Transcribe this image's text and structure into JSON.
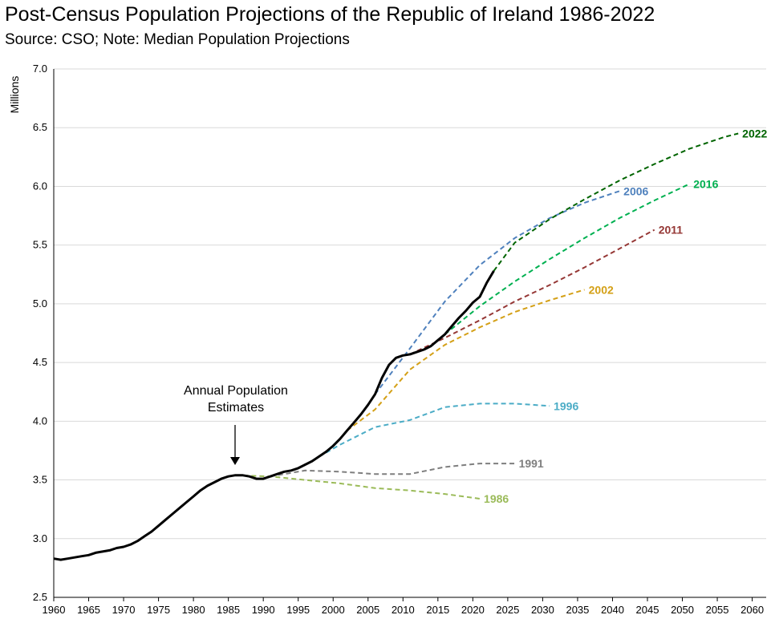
{
  "chart_data": {
    "type": "line",
    "title": "Post-Census Population Projections of the Republic of Ireland 1986-2022",
    "subtitle": "Source: CSO; Note: Median Population Projections",
    "xlabel": "",
    "ylabel": "Millions",
    "xlim": [
      1960,
      2062
    ],
    "ylim": [
      2.5,
      7.0
    ],
    "grid": true,
    "xticks": [
      "1960",
      "1965",
      "1970",
      "1975",
      "1980",
      "1985",
      "1990",
      "1995",
      "2000",
      "2005",
      "2010",
      "2015",
      "2020",
      "2025",
      "2030",
      "2035",
      "2040",
      "2045",
      "2050",
      "2055",
      "2060"
    ],
    "yticks": [
      "2.5",
      "3.0",
      "3.5",
      "4.0",
      "4.5",
      "5.0",
      "5.5",
      "6.0",
      "6.5",
      "7.0"
    ],
    "annotation": {
      "line1": "Annual Population",
      "line2": "Estimates",
      "x": 1986,
      "y": 3.54
    },
    "actual": {
      "name": "Annual Population Estimates",
      "color": "#000000",
      "x": [
        1960,
        1961,
        1962,
        1963,
        1964,
        1965,
        1966,
        1967,
        1968,
        1969,
        1970,
        1971,
        1972,
        1973,
        1974,
        1975,
        1976,
        1977,
        1978,
        1979,
        1980,
        1981,
        1982,
        1983,
        1984,
        1985,
        1986,
        1987,
        1988,
        1989,
        1990,
        1991,
        1992,
        1993,
        1994,
        1995,
        1996,
        1997,
        1998,
        1999,
        2000,
        2001,
        2002,
        2003,
        2004,
        2005,
        2006,
        2007,
        2008,
        2009,
        2010,
        2011,
        2012,
        2013,
        2014,
        2015,
        2016,
        2017,
        2018,
        2019,
        2020,
        2021,
        2022,
        2023
      ],
      "y": [
        2.83,
        2.82,
        2.83,
        2.84,
        2.85,
        2.86,
        2.88,
        2.89,
        2.9,
        2.92,
        2.93,
        2.95,
        2.98,
        3.02,
        3.06,
        3.11,
        3.16,
        3.21,
        3.26,
        3.31,
        3.36,
        3.41,
        3.45,
        3.48,
        3.51,
        3.53,
        3.54,
        3.54,
        3.53,
        3.51,
        3.51,
        3.53,
        3.55,
        3.57,
        3.58,
        3.6,
        3.63,
        3.66,
        3.7,
        3.74,
        3.79,
        3.85,
        3.92,
        3.99,
        4.06,
        4.14,
        4.23,
        4.37,
        4.48,
        4.54,
        4.56,
        4.57,
        4.59,
        4.61,
        4.64,
        4.69,
        4.74,
        4.81,
        4.88,
        4.94,
        5.01,
        5.06,
        5.18,
        5.28
      ]
    },
    "series": [
      {
        "name": "1986",
        "color": "#9bbb59",
        "x": [
          1986,
          1991,
          1996,
          2001,
          2006,
          2011,
          2016,
          2021
        ],
        "y": [
          3.54,
          3.53,
          3.5,
          3.47,
          3.43,
          3.41,
          3.38,
          3.34
        ]
      },
      {
        "name": "1991",
        "color": "#7f7f7f",
        "x": [
          1991,
          1996,
          2001,
          2006,
          2011,
          2016,
          2021,
          2026
        ],
        "y": [
          3.53,
          3.58,
          3.57,
          3.55,
          3.55,
          3.61,
          3.64,
          3.64
        ]
      },
      {
        "name": "1996",
        "color": "#4bacc6",
        "x": [
          1996,
          2001,
          2006,
          2011,
          2016,
          2021,
          2026,
          2031
        ],
        "y": [
          3.63,
          3.8,
          3.95,
          4.01,
          4.12,
          4.15,
          4.15,
          4.13
        ]
      },
      {
        "name": "2002",
        "color": "#d4a017",
        "x": [
          2002,
          2006,
          2011,
          2016,
          2021,
          2026,
          2031,
          2036
        ],
        "y": [
          3.92,
          4.1,
          4.44,
          4.65,
          4.8,
          4.93,
          5.03,
          5.12
        ]
      },
      {
        "name": "2006",
        "color": "#4f81bd",
        "x": [
          2006,
          2011,
          2016,
          2021,
          2026,
          2031,
          2036,
          2041
        ],
        "y": [
          4.23,
          4.62,
          5.02,
          5.33,
          5.56,
          5.73,
          5.86,
          5.96
        ]
      },
      {
        "name": "2011",
        "color": "#953735",
        "x": [
          2011,
          2016,
          2021,
          2026,
          2031,
          2036,
          2041,
          2046
        ],
        "y": [
          4.57,
          4.71,
          4.86,
          5.02,
          5.16,
          5.31,
          5.47,
          5.63
        ]
      },
      {
        "name": "2016",
        "color": "#00b050",
        "x": [
          2016,
          2021,
          2026,
          2031,
          2036,
          2041,
          2046,
          2051
        ],
        "y": [
          4.74,
          4.98,
          5.19,
          5.38,
          5.56,
          5.73,
          5.88,
          6.02
        ]
      },
      {
        "name": "2022",
        "color": "#006400",
        "x": [
          2023,
          2026,
          2031,
          2036,
          2041,
          2046,
          2051,
          2056,
          2058
        ],
        "y": [
          5.28,
          5.52,
          5.72,
          5.89,
          6.05,
          6.19,
          6.32,
          6.42,
          6.45
        ]
      }
    ]
  }
}
